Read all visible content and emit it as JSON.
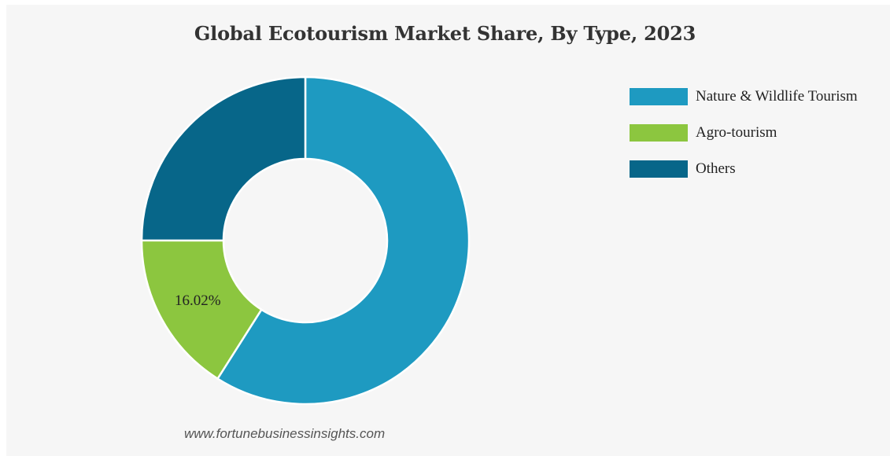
{
  "chart_data": {
    "type": "pie",
    "title": "Global Ecotourism Market Share, By Type, 2023",
    "categories": [
      "Nature & Wildlife Tourism",
      "Agro-tourism",
      "Others"
    ],
    "values": [
      59.0,
      16.02,
      24.98
    ],
    "unit": "%",
    "colors": [
      "#1e9ac1",
      "#8cc63f",
      "#076689"
    ],
    "data_labels": [
      "",
      "16.02%",
      ""
    ],
    "legend_position": "right"
  },
  "footer": {
    "source": "www.fortunebusinessinsights.com"
  }
}
